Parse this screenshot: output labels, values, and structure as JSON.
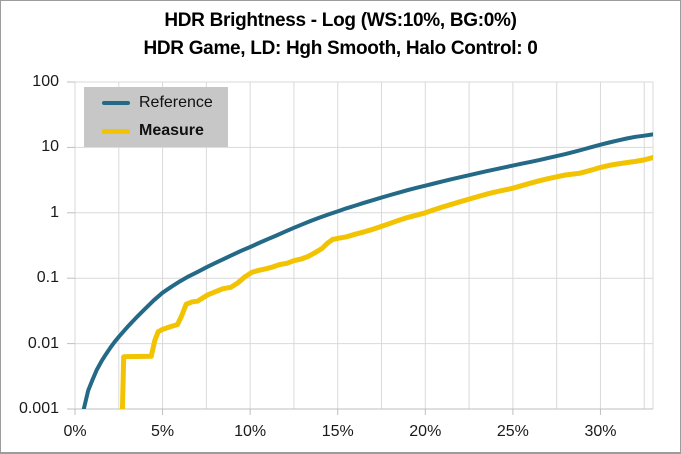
{
  "title": "HDR Brightness - Log (WS:10%, BG:0%)",
  "subtitle": "HDR Game, LD: Hgh Smooth, Halo Control: 0",
  "legend": {
    "items": [
      {
        "label": "Reference",
        "color": "#246A87",
        "bold": false
      },
      {
        "label": "Measure",
        "color": "#F2C300",
        "bold": true
      }
    ]
  },
  "colors": {
    "reference_line": "#246A87",
    "measure_line": "#F2C300",
    "gridline": "#d9d9d9",
    "axis_line": "#bfbfbf",
    "legend_background": "#c7c7c7",
    "text": "#1a1a1a"
  },
  "chart_data": {
    "type": "line",
    "title": "HDR Brightness - Log (WS:10%, BG:0%)",
    "subtitle": "HDR Game, LD: Hgh Smooth, Halo Control: 0",
    "xlabel": "",
    "ylabel": "",
    "x_unit": "percent",
    "y_scale": "log",
    "xlim": [
      0,
      33
    ],
    "ylim": [
      0.001,
      100
    ],
    "grid": true,
    "x_grid_step_pct": 2.5,
    "legend_position": "top-left-inside",
    "x_ticks": {
      "values": [
        0,
        5,
        10,
        15,
        20,
        25,
        30
      ],
      "labels": [
        "0%",
        "5%",
        "10%",
        "15%",
        "20%",
        "25%",
        "30%"
      ]
    },
    "y_ticks": {
      "values": [
        100,
        10,
        1,
        0.1,
        0.01,
        0.001
      ],
      "labels": [
        "100",
        "10",
        "1",
        "0.1",
        "0.01",
        "0.001"
      ]
    },
    "series": [
      {
        "name": "Reference",
        "color": "#246A87",
        "width": 4,
        "points": [
          [
            0.45,
            0.0008
          ],
          [
            0.5,
            0.001
          ],
          [
            0.75,
            0.0019
          ],
          [
            1,
            0.0028
          ],
          [
            1.25,
            0.004
          ],
          [
            1.5,
            0.0053
          ],
          [
            1.75,
            0.0068
          ],
          [
            2,
            0.0085
          ],
          [
            2.25,
            0.0105
          ],
          [
            2.5,
            0.0127
          ],
          [
            3,
            0.018
          ],
          [
            3.5,
            0.025
          ],
          [
            4,
            0.034
          ],
          [
            4.5,
            0.046
          ],
          [
            5,
            0.06
          ],
          [
            5.5,
            0.074
          ],
          [
            6,
            0.09
          ],
          [
            6.5,
            0.107
          ],
          [
            7,
            0.125
          ],
          [
            7.5,
            0.147
          ],
          [
            8,
            0.17
          ],
          [
            8.5,
            0.197
          ],
          [
            9,
            0.228
          ],
          [
            9.5,
            0.263
          ],
          [
            10,
            0.3
          ],
          [
            10.5,
            0.345
          ],
          [
            11,
            0.395
          ],
          [
            11.5,
            0.45
          ],
          [
            12,
            0.515
          ],
          [
            12.5,
            0.59
          ],
          [
            13,
            0.67
          ],
          [
            13.5,
            0.76
          ],
          [
            14,
            0.85
          ],
          [
            14.5,
            0.95
          ],
          [
            15,
            1.05
          ],
          [
            15.5,
            1.17
          ],
          [
            16,
            1.29
          ],
          [
            16.5,
            1.42
          ],
          [
            17,
            1.56
          ],
          [
            17.5,
            1.71
          ],
          [
            18,
            1.87
          ],
          [
            18.5,
            2.04
          ],
          [
            19,
            2.22
          ],
          [
            19.5,
            2.41
          ],
          [
            20,
            2.6
          ],
          [
            20.5,
            2.81
          ],
          [
            21,
            3.03
          ],
          [
            21.5,
            3.26
          ],
          [
            22,
            3.5
          ],
          [
            22.5,
            3.76
          ],
          [
            23,
            4.03
          ],
          [
            23.5,
            4.32
          ],
          [
            24,
            4.62
          ],
          [
            24.5,
            4.94
          ],
          [
            25,
            5.27
          ],
          [
            25.5,
            5.63
          ],
          [
            26,
            6.0
          ],
          [
            26.5,
            6.4
          ],
          [
            27,
            6.85
          ],
          [
            27.5,
            7.35
          ],
          [
            28,
            7.9
          ],
          [
            28.5,
            8.55
          ],
          [
            29,
            9.3
          ],
          [
            29.5,
            10.1
          ],
          [
            30,
            11.0
          ],
          [
            30.5,
            11.9
          ],
          [
            31,
            12.8
          ],
          [
            31.5,
            13.7
          ],
          [
            32,
            14.5
          ],
          [
            32.5,
            15.1
          ],
          [
            33,
            15.8
          ]
        ]
      },
      {
        "name": "Measure",
        "color": "#F2C300",
        "width": 5,
        "points": [
          [
            2.7,
            0.0008
          ],
          [
            2.78,
            0.0063
          ],
          [
            4.35,
            0.0064
          ],
          [
            4.55,
            0.011
          ],
          [
            4.75,
            0.0152
          ],
          [
            5.0,
            0.0165
          ],
          [
            5.5,
            0.0183
          ],
          [
            5.85,
            0.0195
          ],
          [
            6.1,
            0.027
          ],
          [
            6.35,
            0.04
          ],
          [
            6.7,
            0.0435
          ],
          [
            7.0,
            0.0445
          ],
          [
            7.35,
            0.051
          ],
          [
            7.6,
            0.056
          ],
          [
            8.0,
            0.062
          ],
          [
            8.45,
            0.069
          ],
          [
            8.9,
            0.0725
          ],
          [
            9.3,
            0.085
          ],
          [
            9.7,
            0.105
          ],
          [
            10.1,
            0.123
          ],
          [
            10.5,
            0.132
          ],
          [
            10.9,
            0.139
          ],
          [
            11.3,
            0.149
          ],
          [
            11.7,
            0.162
          ],
          [
            12.1,
            0.169
          ],
          [
            12.5,
            0.185
          ],
          [
            12.9,
            0.196
          ],
          [
            13.3,
            0.215
          ],
          [
            13.7,
            0.245
          ],
          [
            14.1,
            0.285
          ],
          [
            14.4,
            0.34
          ],
          [
            14.7,
            0.39
          ],
          [
            15.1,
            0.41
          ],
          [
            15.5,
            0.43
          ],
          [
            16,
            0.47
          ],
          [
            16.5,
            0.51
          ],
          [
            17,
            0.56
          ],
          [
            17.5,
            0.62
          ],
          [
            18,
            0.69
          ],
          [
            18.5,
            0.77
          ],
          [
            19,
            0.85
          ],
          [
            19.5,
            0.92
          ],
          [
            20,
            1.0
          ],
          [
            20.5,
            1.11
          ],
          [
            21,
            1.23
          ],
          [
            21.5,
            1.35
          ],
          [
            22,
            1.48
          ],
          [
            22.5,
            1.62
          ],
          [
            23,
            1.77
          ],
          [
            23.5,
            1.93
          ],
          [
            24,
            2.08
          ],
          [
            24.5,
            2.22
          ],
          [
            25,
            2.38
          ],
          [
            25.5,
            2.6
          ],
          [
            26,
            2.84
          ],
          [
            26.5,
            3.08
          ],
          [
            27,
            3.32
          ],
          [
            27.5,
            3.55
          ],
          [
            28,
            3.78
          ],
          [
            28.4,
            3.9
          ],
          [
            28.8,
            4.02
          ],
          [
            29.2,
            4.3
          ],
          [
            29.6,
            4.6
          ],
          [
            30,
            4.95
          ],
          [
            30.5,
            5.3
          ],
          [
            31,
            5.6
          ],
          [
            31.5,
            5.85
          ],
          [
            32,
            6.1
          ],
          [
            32.5,
            6.45
          ],
          [
            33,
            7.0
          ]
        ]
      }
    ]
  }
}
